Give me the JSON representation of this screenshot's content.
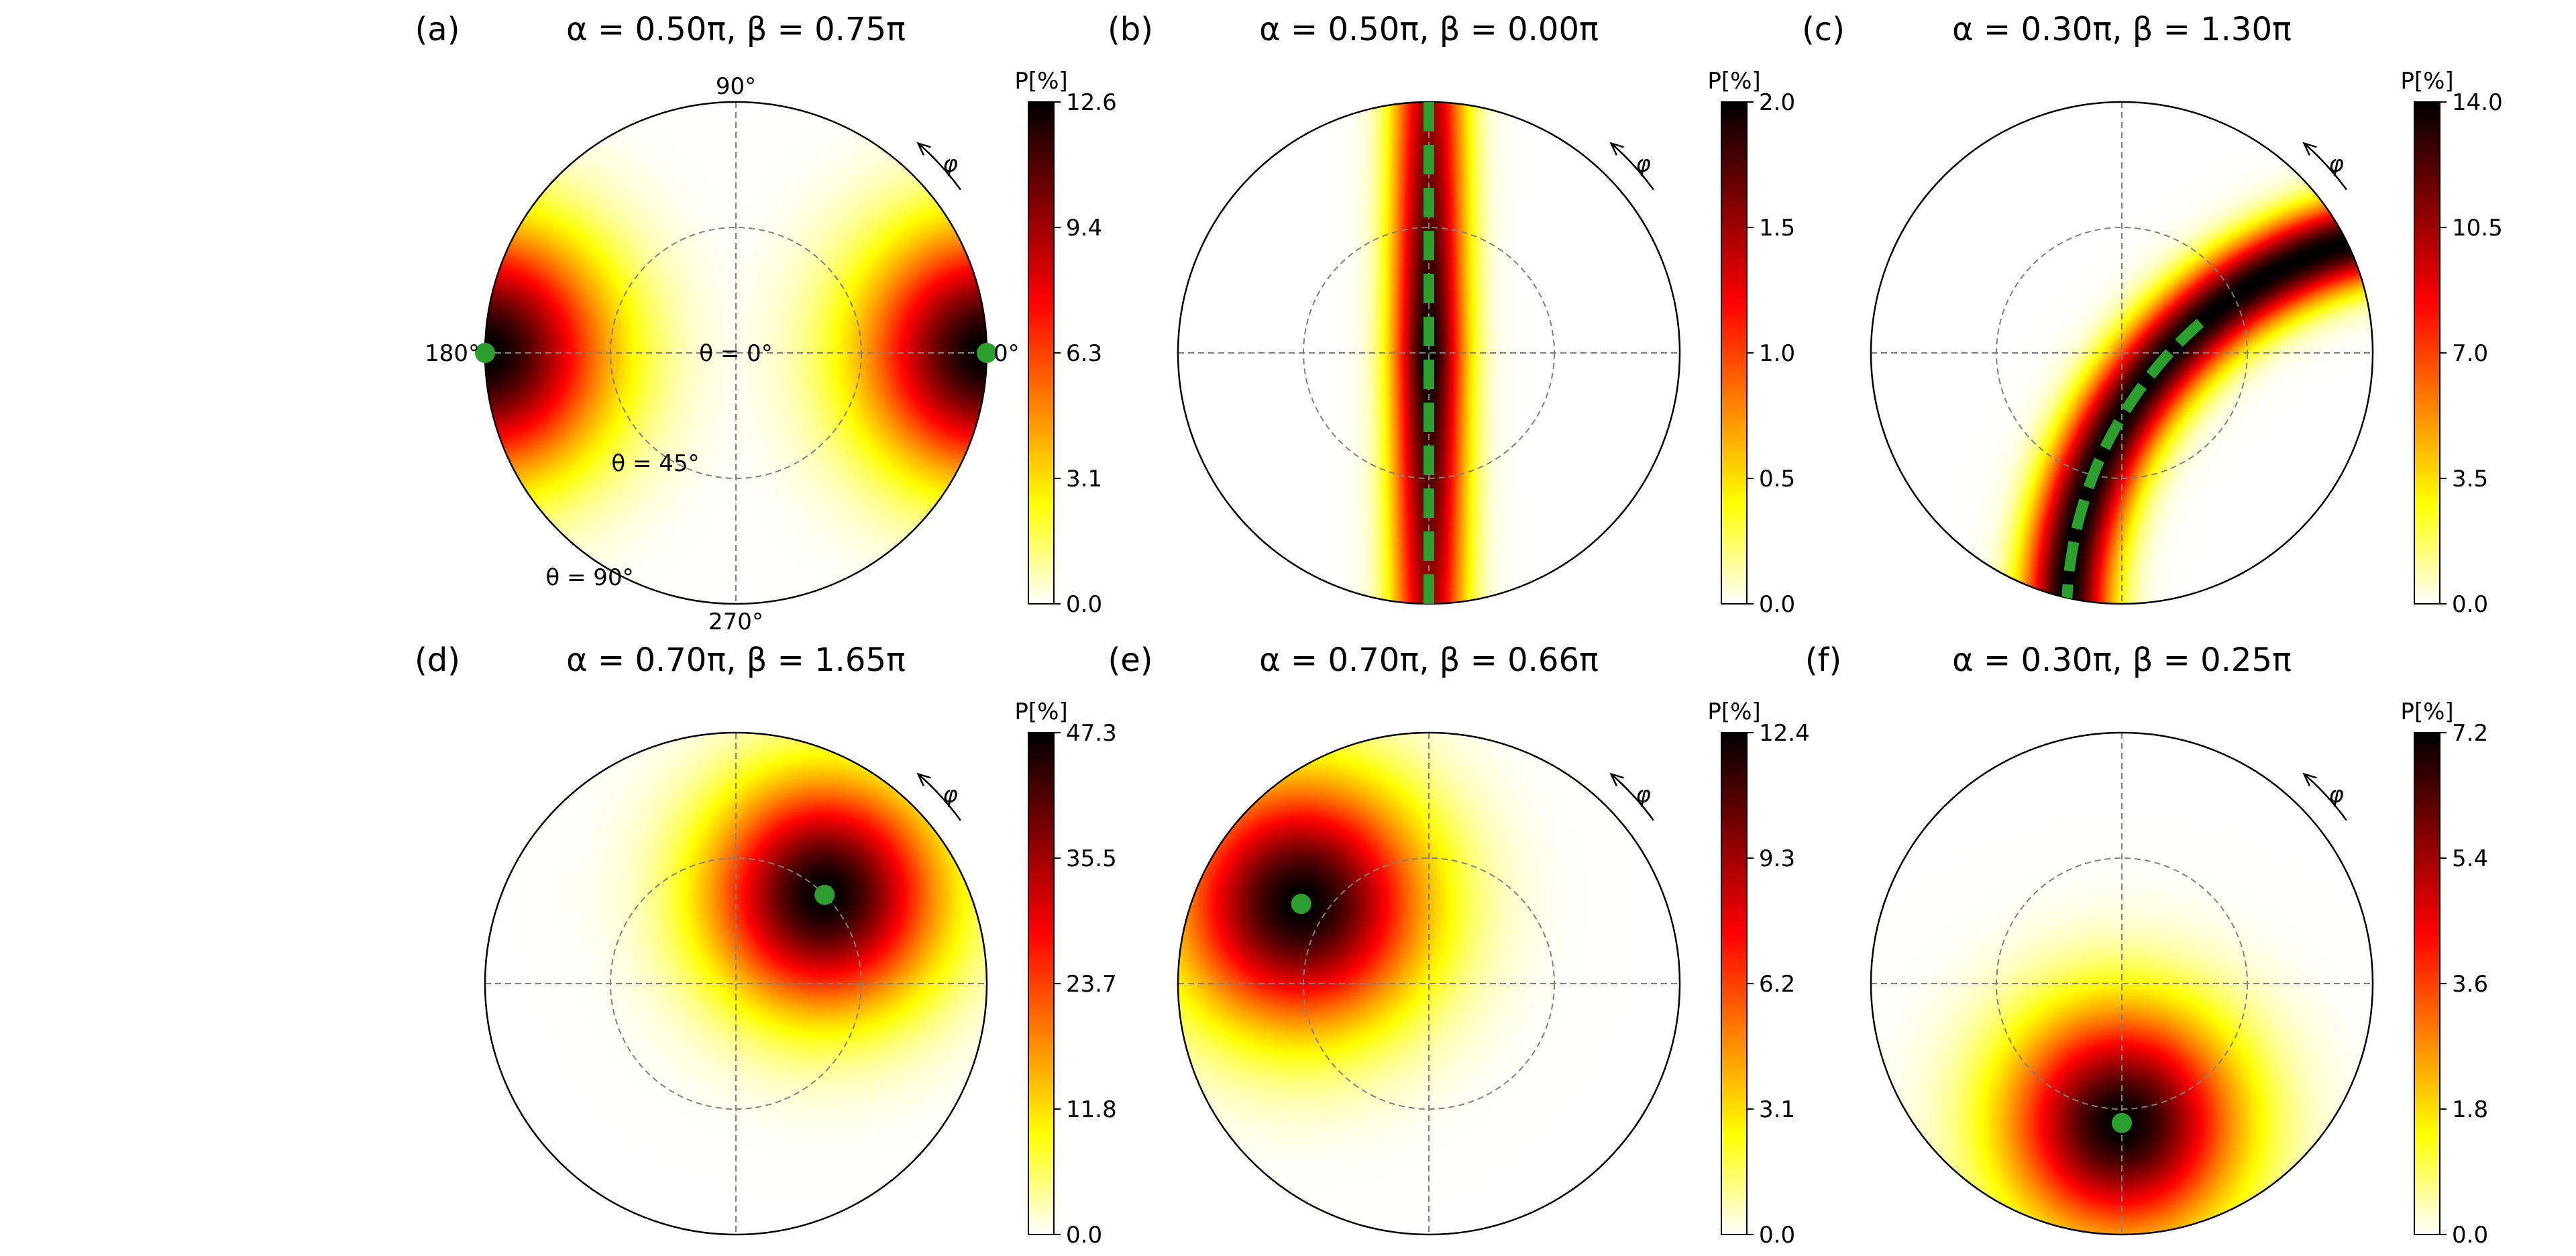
{
  "chart_data": [
    {
      "type": "heatmap",
      "projection": "polar",
      "panel_label": "(a)",
      "title": "α = 0.50π, β = 0.75π",
      "colorbar": {
        "title": "P[%]",
        "ticks": [
          "0.0",
          "3.1",
          "6.3",
          "9.4",
          "12.6"
        ],
        "min": 0,
        "max": 12.6
      },
      "annotations": [
        "90$^\\circ$",
        "270$^\\circ$",
        "180$^\\circ$",
        "0$^\\circ$",
        "θ = 0$^\\circ$",
        "θ = 45$^\\circ$",
        "θ = 90$^\\circ$",
        "φ"
      ],
      "azimuth_labels": {
        "top": "90°",
        "bottom": "270°",
        "left": "180°",
        "right": "0°"
      },
      "theta_labels": [
        "θ = 0°",
        "θ = 45°",
        "θ = 90°"
      ],
      "phi_label": "φ",
      "intensity_peaks": [
        {
          "theta_deg": 90,
          "phi_deg": 0,
          "width_deg": 30
        },
        {
          "theta_deg": 90,
          "phi_deg": 180,
          "width_deg": 30
        }
      ],
      "marker_points": [
        {
          "theta_deg": 90,
          "phi_deg": 0
        },
        {
          "theta_deg": 90,
          "phi_deg": 180
        }
      ],
      "dashed_curve": null,
      "grid": true,
      "colormap": "hot_r"
    },
    {
      "type": "heatmap",
      "projection": "polar",
      "panel_label": "(b)",
      "title": "α = 0.50π, β = 0.00π",
      "colorbar": {
        "title": "P[%]",
        "ticks": [
          "0.0",
          "0.5",
          "1.0",
          "1.5",
          "2.0"
        ],
        "min": 0,
        "max": 2.0
      },
      "phi_label": "φ",
      "intensity_band": {
        "kind": "vertical_line",
        "width": 0.1
      },
      "dashed_curve": {
        "kind": "vertical_diameter"
      },
      "marker_points": [],
      "grid": true,
      "colormap": "hot_r"
    },
    {
      "type": "heatmap",
      "projection": "polar",
      "panel_label": "(c)",
      "title": "α = 0.30π, β = 1.30π",
      "colorbar": {
        "title": "P[%]",
        "ticks": [
          "0.0",
          "3.5",
          "7.0",
          "10.5",
          "14.0"
        ],
        "min": 0,
        "max": 14.0
      },
      "phi_label": "φ",
      "intensity_band": {
        "kind": "arc",
        "center": [
          1.33,
          -1.05
        ],
        "radius": 1.55,
        "width": 0.12
      },
      "dashed_curve": {
        "kind": "arc",
        "center": [
          1.33,
          -1.05
        ],
        "radius": 1.55
      },
      "marker_points": [],
      "grid": true,
      "colormap": "hot_r"
    },
    {
      "type": "heatmap",
      "projection": "polar",
      "panel_label": "(d)",
      "title": "α = 0.70π, β = 1.65π",
      "colorbar": {
        "title": "P[%]",
        "ticks": [
          "0.0",
          "11.8",
          "23.7",
          "35.5",
          "47.3"
        ],
        "min": 0,
        "max": 47.3
      },
      "phi_label": "φ",
      "intensity_peaks": [
        {
          "theta_deg": 45,
          "phi_deg": 45,
          "width_deg": 28
        }
      ],
      "marker_points": [
        {
          "theta_deg": 45,
          "phi_deg": 45
        }
      ],
      "dashed_curve": null,
      "grid": true,
      "colormap": "hot_r"
    },
    {
      "type": "heatmap",
      "projection": "polar",
      "panel_label": "(e)",
      "title": "α = 0.70π, β = 0.66π",
      "colorbar": {
        "title": "P[%]",
        "ticks": [
          "0.0",
          "3.1",
          "6.2",
          "9.3",
          "12.4"
        ],
        "min": 0,
        "max": 12.4
      },
      "phi_label": "φ",
      "intensity_peaks": [
        {
          "theta_deg": 54,
          "phi_deg": 148,
          "width_deg": 30
        }
      ],
      "marker_points": [
        {
          "theta_deg": 54,
          "phi_deg": 148
        }
      ],
      "dashed_curve": null,
      "grid": true,
      "colormap": "hot_r"
    },
    {
      "type": "heatmap",
      "projection": "polar",
      "panel_label": "(f)",
      "title": "α = 0.30π, β = 0.25π",
      "colorbar": {
        "title": "P[%]",
        "ticks": [
          "0.0",
          "1.8",
          "3.6",
          "5.4",
          "7.2"
        ],
        "min": 0,
        "max": 7.2
      },
      "phi_label": "φ",
      "intensity_peaks": [
        {
          "theta_deg": 50,
          "phi_deg": 270,
          "width_deg": 28
        }
      ],
      "marker_points": [
        {
          "theta_deg": 50,
          "phi_deg": 270
        }
      ],
      "dashed_curve": null,
      "grid": true,
      "colormap": "hot_r"
    }
  ],
  "colors": {
    "marker": "#2ca02c",
    "dashed_curve": "#2ca02c",
    "grid": "#808080",
    "outline": "#000000",
    "colormap_stops": [
      "#ffffff",
      "#ffff00",
      "#ff8000",
      "#ff0000",
      "#800000",
      "#000000"
    ]
  }
}
